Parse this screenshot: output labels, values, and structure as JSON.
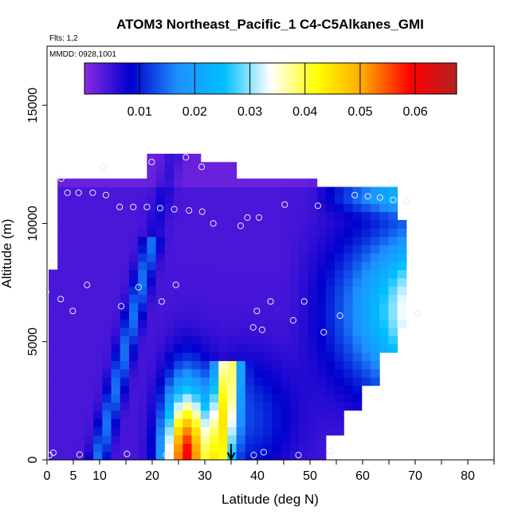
{
  "chart_data": {
    "type": "heatmap",
    "title": "ATOM3 Northeast_Pacific_1 C4-C5Alkanes_GMI",
    "subtitle_flights": "Flts: 1,2",
    "subtitle_dates": "MMDD: 0928,1001",
    "xlabel": "Latitude (deg N)",
    "ylabel": "Altitude (m)",
    "xlim": [
      0,
      85
    ],
    "ylim": [
      0,
      17500
    ],
    "x_ticks": [
      0,
      5,
      10,
      20,
      30,
      40,
      50,
      60,
      70,
      80
    ],
    "x_minor_ticks": [
      15,
      25,
      35,
      45,
      55,
      65,
      75,
      85
    ],
    "y_ticks": [
      0,
      5000,
      10000,
      15000
    ],
    "colorbar": {
      "min": 0.0,
      "max": 0.0675,
      "ticks": [
        "0.01",
        "0.02",
        "0.03",
        "0.04",
        "0.05",
        "0.06"
      ],
      "tick_values": [
        0.01,
        0.02,
        0.03,
        0.04,
        0.05,
        0.06
      ],
      "stops": [
        "#8a2be2",
        "#0000cd",
        "#1e90ff",
        "#00bfff",
        "#ffffff",
        "#ffff00",
        "#ffa500",
        "#ff0000",
        "#b22222"
      ]
    },
    "marker_latitude": 35,
    "observations": [
      {
        "lat": 0.5,
        "alt": 200
      },
      {
        "lat": 1.2,
        "alt": 300
      },
      {
        "lat": 6.2,
        "alt": 220
      },
      {
        "lat": 15.2,
        "alt": 250
      },
      {
        "lat": 22.7,
        "alt": 220
      },
      {
        "lat": 39.3,
        "alt": 200
      },
      {
        "lat": 41.2,
        "alt": 320
      },
      {
        "lat": 47.8,
        "alt": 200
      },
      {
        "lat": 53.8,
        "alt": 350
      },
      {
        "lat": -0.2,
        "alt": 7100
      },
      {
        "lat": 2.6,
        "alt": 6800
      },
      {
        "lat": 4.9,
        "alt": 6300
      },
      {
        "lat": 7.6,
        "alt": 7400
      },
      {
        "lat": 14.1,
        "alt": 6500
      },
      {
        "lat": 17.4,
        "alt": 7300
      },
      {
        "lat": 21.8,
        "alt": 6700
      },
      {
        "lat": 24.5,
        "alt": 7400
      },
      {
        "lat": 39.2,
        "alt": 5600
      },
      {
        "lat": 39.9,
        "alt": 6300
      },
      {
        "lat": 40.9,
        "alt": 5500
      },
      {
        "lat": 42.5,
        "alt": 6700
      },
      {
        "lat": 46.8,
        "alt": 5900
      },
      {
        "lat": 48.9,
        "alt": 6700
      },
      {
        "lat": 52.6,
        "alt": 5400
      },
      {
        "lat": 55.7,
        "alt": 6100
      },
      {
        "lat": 70.5,
        "alt": 6200
      },
      {
        "lat": 2.7,
        "alt": 11900
      },
      {
        "lat": 3.9,
        "alt": 11300
      },
      {
        "lat": 6.0,
        "alt": 11300
      },
      {
        "lat": 8.7,
        "alt": 11300
      },
      {
        "lat": 11.2,
        "alt": 11200
      },
      {
        "lat": 10.7,
        "alt": 12400
      },
      {
        "lat": 13.8,
        "alt": 10700
      },
      {
        "lat": 16.4,
        "alt": 10700
      },
      {
        "lat": 19.0,
        "alt": 10700
      },
      {
        "lat": 21.5,
        "alt": 10650
      },
      {
        "lat": 24.2,
        "alt": 10600
      },
      {
        "lat": 27.0,
        "alt": 10550
      },
      {
        "lat": 29.5,
        "alt": 10500
      },
      {
        "lat": 31.6,
        "alt": 10000
      },
      {
        "lat": 36.8,
        "alt": 9900
      },
      {
        "lat": 38.1,
        "alt": 10250
      },
      {
        "lat": 40.3,
        "alt": 10250
      },
      {
        "lat": 45.2,
        "alt": 10800
      },
      {
        "lat": 51.5,
        "alt": 10750
      },
      {
        "lat": 58.5,
        "alt": 11200
      },
      {
        "lat": 61.0,
        "alt": 11150
      },
      {
        "lat": 63.3,
        "alt": 11100
      },
      {
        "lat": 65.8,
        "alt": 11000
      },
      {
        "lat": 68.3,
        "alt": 10950
      },
      {
        "lat": 19.9,
        "alt": 12600
      },
      {
        "lat": 26.4,
        "alt": 12800
      },
      {
        "lat": 29.4,
        "alt": 12400
      }
    ]
  }
}
